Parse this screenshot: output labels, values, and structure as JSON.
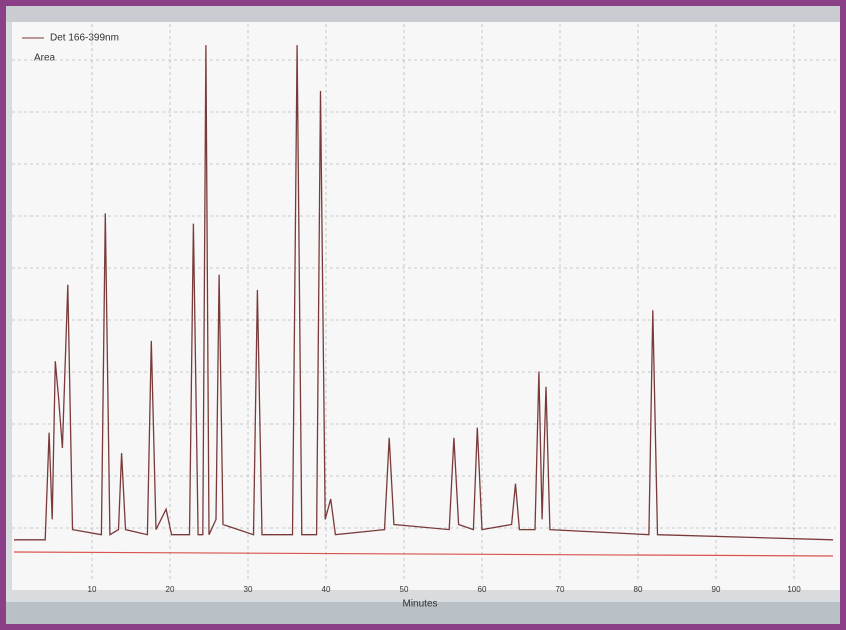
{
  "chart_data": {
    "type": "line",
    "series": [
      {
        "name": "Det 166-399nm",
        "color": "#7a3a3a",
        "x": [
          0,
          4.0,
          4.5,
          4.9,
          5.3,
          5.7,
          6.2,
          6.9,
          7.5,
          11.2,
          11.7,
          12.3,
          13.4,
          13.8,
          14.3,
          17.1,
          17.6,
          18.2,
          19.5,
          20.2,
          22.5,
          23.0,
          23.6,
          24.2,
          24.6,
          25.0,
          25.9,
          26.3,
          26.8,
          30.7,
          31.2,
          31.8,
          35.7,
          36.3,
          36.9,
          38.8,
          39.3,
          39.9,
          40.6,
          41.2,
          47.5,
          48.1,
          48.7,
          55.8,
          56.4,
          57.0,
          58.9,
          59.4,
          60.0,
          63.8,
          64.3,
          64.8,
          66.8,
          67.3,
          67.7,
          68.2,
          68.7,
          81.4,
          81.9,
          82.5,
          105
        ],
        "values": [
          2,
          2,
          23,
          6,
          37,
          30,
          20,
          52,
          4,
          3,
          66,
          3,
          4,
          19,
          4,
          3,
          41,
          4,
          8,
          3,
          3,
          64,
          3,
          3,
          99,
          3,
          6,
          54,
          5,
          3,
          51,
          3,
          3,
          99,
          3,
          3,
          90,
          6,
          10,
          3,
          4,
          22,
          5,
          4,
          22,
          5,
          4,
          24,
          4,
          5,
          13,
          4,
          4,
          35,
          6,
          32,
          4,
          3,
          47,
          3,
          2
        ]
      }
    ],
    "y_label": "Area",
    "x_label": "Minutes",
    "xlim": [
      0,
      105
    ],
    "ylim": [
      0,
      100
    ],
    "xticks": [
      10,
      20,
      30,
      40,
      50,
      60,
      70,
      80,
      90,
      100
    ],
    "grid": true
  }
}
